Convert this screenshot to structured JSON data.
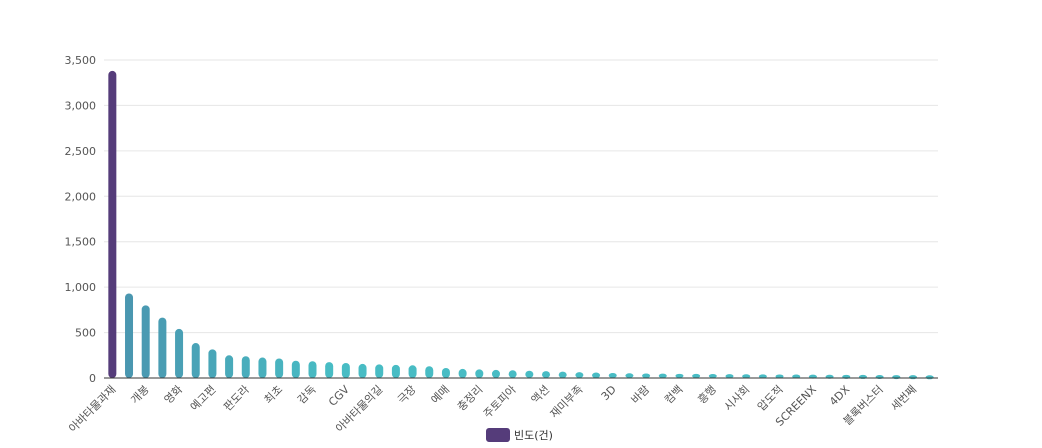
{
  "chart_data": {
    "type": "bar",
    "categories": [
      "아바타물과재",
      "",
      "개봉",
      "",
      "영화",
      "",
      "예고편",
      "",
      "판도라",
      "",
      "최초",
      "",
      "감독",
      "",
      "CGV",
      "",
      "아바타물의길",
      "",
      "극장",
      "",
      "예매",
      "",
      "충정리",
      "",
      "주토피아",
      "",
      "액션",
      "",
      "재미부족",
      "",
      "3D",
      "",
      "바람",
      "",
      "컴백",
      "",
      "흥행",
      "",
      "시사회",
      "",
      "압도적",
      "",
      "SCREENX",
      "",
      "4DX",
      "",
      "블록버스터",
      "",
      "세번째",
      ""
    ],
    "series": [
      {
        "name": "빈도(건)",
        "values": [
          3380,
          930,
          800,
          665,
          540,
          385,
          315,
          250,
          240,
          225,
          215,
          190,
          185,
          175,
          165,
          155,
          150,
          145,
          140,
          130,
          110,
          100,
          95,
          90,
          85,
          80,
          75,
          70,
          65,
          60,
          55,
          52,
          50,
          48,
          46,
          45,
          44,
          42,
          41,
          40,
          39,
          38,
          37,
          36,
          35,
          34,
          33,
          32,
          31,
          30
        ]
      }
    ],
    "ylim": [
      0,
      3500
    ],
    "yticks": [
      "0",
      "500",
      "1,000",
      "1,500",
      "2,000",
      "2,500",
      "3,000",
      "3,500"
    ],
    "grid": true,
    "legend": "bottom-center",
    "colors": {
      "highlight": "#553c7a",
      "gradient_start": "#4a97b0",
      "gradient_end": "#48bcc4",
      "grid": "#e6e6e6",
      "axis": "#333333"
    }
  },
  "legend": {
    "label": "빈도(건)"
  }
}
